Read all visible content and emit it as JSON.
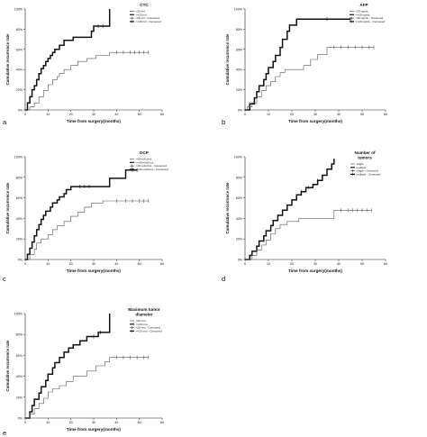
{
  "chart_data": [
    {
      "panel_letter": "a",
      "type": "line",
      "title": "CTC",
      "xlabel": "Time from surgery(months)",
      "ylabel": "Cumulative recurrence rate",
      "xlim": [
        0,
        60
      ],
      "ylim": [
        0,
        100
      ],
      "x_ticks": [
        "0",
        "10",
        "20",
        "30",
        "40",
        "50",
        "60"
      ],
      "y_ticks": [
        "0%",
        "20%",
        "40%",
        "60%",
        "80%",
        "100%"
      ],
      "legend_entries": [
        "<20 /ml",
        ">=20 /ml",
        "<20 /ml - Censored",
        ">=20 /ml - Censored"
      ],
      "legend_position": "top-right",
      "series": [
        {
          "name": ">=20 /ml",
          "style": "thick",
          "points": [
            [
              0,
              0
            ],
            [
              1,
              7
            ],
            [
              2,
              13
            ],
            [
              3,
              20
            ],
            [
              4,
              24
            ],
            [
              5,
              30
            ],
            [
              6,
              36
            ],
            [
              7,
              41
            ],
            [
              8,
              44
            ],
            [
              9,
              48
            ],
            [
              10,
              51
            ],
            [
              11,
              54
            ],
            [
              12,
              57
            ],
            [
              13,
              60
            ],
            [
              15,
              64
            ],
            [
              17,
              69
            ],
            [
              21,
              72
            ],
            [
              29,
              78
            ],
            [
              30,
              83
            ],
            [
              37,
              83
            ],
            [
              37,
              100
            ]
          ],
          "censored": [
            32,
            34
          ]
        },
        {
          "name": "<20 /ml",
          "style": "thin",
          "points": [
            [
              0,
              0
            ],
            [
              2,
              3
            ],
            [
              4,
              7
            ],
            [
              6,
              13
            ],
            [
              8,
              19
            ],
            [
              10,
              25
            ],
            [
              12,
              30
            ],
            [
              14,
              33
            ],
            [
              15,
              36
            ],
            [
              17,
              40
            ],
            [
              20,
              44
            ],
            [
              23,
              48
            ],
            [
              27,
              51
            ],
            [
              31,
              54
            ],
            [
              37,
              57
            ],
            [
              54,
              57
            ]
          ],
          "censored": [
            40,
            43,
            46,
            48,
            50,
            52,
            54
          ]
        }
      ]
    },
    {
      "panel_letter": "b",
      "type": "line",
      "title": "AFP",
      "xlabel": "Time from surgery(months)",
      "ylabel": "Cumulative recurrence rate",
      "xlim": [
        0,
        60
      ],
      "ylim": [
        0,
        100
      ],
      "x_ticks": [
        "0",
        "10",
        "20",
        "30",
        "40",
        "50",
        "60"
      ],
      "y_ticks": [
        "0%",
        "20%",
        "40%",
        "60%",
        "80%",
        "100%"
      ],
      "legend_entries": [
        "<20 ng/mL",
        ">=20 ng/mL",
        "<20 ng/mL - Censored",
        ">=20 ng/mL - Censored"
      ],
      "legend_position": "top-right",
      "series": [
        {
          "name": ">=20 ng/mL",
          "style": "thick",
          "points": [
            [
              0,
              0
            ],
            [
              2,
              6
            ],
            [
              4,
              12
            ],
            [
              5,
              18
            ],
            [
              6,
              24
            ],
            [
              8,
              30
            ],
            [
              9,
              36
            ],
            [
              10,
              42
            ],
            [
              12,
              48
            ],
            [
              13,
              54
            ],
            [
              15,
              62
            ],
            [
              16,
              70
            ],
            [
              18,
              78
            ],
            [
              19,
              84
            ],
            [
              22,
              90
            ],
            [
              45,
              90
            ]
          ],
          "censored": [
            35,
            45
          ]
        },
        {
          "name": "<20 ng/mL",
          "style": "thin",
          "points": [
            [
              0,
              0
            ],
            [
              1,
              3
            ],
            [
              3,
              7
            ],
            [
              5,
              13
            ],
            [
              7,
              19
            ],
            [
              9,
              24
            ],
            [
              11,
              28
            ],
            [
              13,
              33
            ],
            [
              15,
              37
            ],
            [
              17,
              40
            ],
            [
              25,
              44
            ],
            [
              28,
              50
            ],
            [
              31,
              55
            ],
            [
              35,
              62
            ],
            [
              55,
              62
            ]
          ],
          "censored": [
            38,
            41,
            44,
            47,
            50,
            53,
            55
          ]
        }
      ]
    },
    {
      "panel_letter": "c",
      "type": "line",
      "title": "DCP",
      "xlabel": "Time from surgery(months)",
      "ylabel": "Cumulative recurrence rate",
      "xlim": [
        0,
        60
      ],
      "ylim": [
        0,
        100
      ],
      "x_ticks": [
        "0",
        "10",
        "20",
        "30",
        "40",
        "50",
        "60"
      ],
      "y_ticks": [
        "0%",
        "20%",
        "40%",
        "60%",
        "80%",
        "100%"
      ],
      "legend_entries": [
        "<40 mAU/mL",
        ">=40 mAU/mL",
        "<40 mAU/mL - Censored",
        ">=40 mAU/mL - Censored"
      ],
      "legend_position": "top-right",
      "series": [
        {
          "name": ">=40 mAU/mL",
          "style": "thick",
          "points": [
            [
              0,
              0
            ],
            [
              1,
              5
            ],
            [
              2,
              11
            ],
            [
              3,
              17
            ],
            [
              4,
              23
            ],
            [
              5,
              29
            ],
            [
              6,
              34
            ],
            [
              7,
              39
            ],
            [
              8,
              43
            ],
            [
              9,
              47
            ],
            [
              11,
              51
            ],
            [
              12,
              55
            ],
            [
              14,
              58
            ],
            [
              15,
              61
            ],
            [
              17,
              64
            ],
            [
              18,
              68
            ],
            [
              20,
              71
            ],
            [
              36,
              71
            ],
            [
              37,
              79
            ],
            [
              44,
              87
            ],
            [
              49,
              87
            ]
          ],
          "censored": [
            24,
            26,
            28,
            47,
            49
          ]
        },
        {
          "name": "<40 mAU/mL",
          "style": "thin",
          "points": [
            [
              0,
              0
            ],
            [
              2,
              5
            ],
            [
              4,
              10
            ],
            [
              5,
              16
            ],
            [
              7,
              20
            ],
            [
              10,
              24
            ],
            [
              12,
              29
            ],
            [
              14,
              33
            ],
            [
              17,
              37
            ],
            [
              20,
              42
            ],
            [
              23,
              46
            ],
            [
              26,
              51
            ],
            [
              29,
              55
            ],
            [
              34,
              57
            ],
            [
              54,
              57
            ]
          ],
          "censored": [
            40,
            44,
            47,
            50,
            52,
            54
          ]
        }
      ]
    },
    {
      "panel_letter": "d",
      "type": "line",
      "title": "Number of tumors",
      "xlabel": "Time from surgery(months)",
      "ylabel": "Cumulative recurrence rate",
      "xlim": [
        0,
        60
      ],
      "ylim": [
        0,
        100
      ],
      "x_ticks": [
        "0",
        "10",
        "20",
        "30",
        "40",
        "50",
        "60"
      ],
      "y_ticks": [
        "0%",
        "20%",
        "40%",
        "60%",
        "80%",
        "100%"
      ],
      "legend_entries": [
        "single",
        "multiple",
        "single - Censored",
        "multiple - Censored"
      ],
      "legend_position": "top-right",
      "series": [
        {
          "name": "multiple",
          "style": "thick",
          "points": [
            [
              0,
              0
            ],
            [
              2,
              4
            ],
            [
              3,
              8
            ],
            [
              5,
              13
            ],
            [
              6,
              18
            ],
            [
              8,
              23
            ],
            [
              9,
              28
            ],
            [
              11,
              33
            ],
            [
              12,
              38
            ],
            [
              14,
              43
            ],
            [
              16,
              48
            ],
            [
              18,
              53
            ],
            [
              20,
              58
            ],
            [
              22,
              63
            ],
            [
              24,
              66
            ],
            [
              26,
              70
            ],
            [
              29,
              73
            ],
            [
              31,
              77
            ],
            [
              33,
              82
            ],
            [
              35,
              88
            ],
            [
              37,
              93
            ],
            [
              38,
              98
            ]
          ],
          "censored": [
            24,
            27,
            31
          ]
        },
        {
          "name": "single",
          "style": "thin",
          "points": [
            [
              0,
              0
            ],
            [
              3,
              4
            ],
            [
              5,
              9
            ],
            [
              7,
              14
            ],
            [
              9,
              19
            ],
            [
              11,
              25
            ],
            [
              13,
              30
            ],
            [
              15,
              34
            ],
            [
              18,
              37
            ],
            [
              23,
              40
            ],
            [
              38,
              40
            ],
            [
              38,
              48
            ],
            [
              54,
              48
            ]
          ],
          "censored": [
            41,
            44,
            46,
            48,
            50,
            52,
            54
          ]
        }
      ]
    },
    {
      "panel_letter": "e",
      "type": "line",
      "title": "Maximum tumor diameter",
      "xlabel": "Time from surgery(months)",
      "ylabel": "Cumulative recurrence rate",
      "xlim": [
        0,
        60
      ],
      "ylim": [
        0,
        100
      ],
      "x_ticks": [
        "0",
        "10",
        "20",
        "30",
        "40",
        "50",
        "60"
      ],
      "y_ticks": [
        "0%",
        "20%",
        "40%",
        "60%",
        "80%",
        "100%"
      ],
      "legend_entries": [
        "<20 mm",
        ">=20 mm",
        "<20 mm - Censored",
        ">=20 mm - Censored"
      ],
      "legend_position": "top-right",
      "series": [
        {
          "name": ">=20 mm",
          "style": "thick",
          "points": [
            [
              0,
              0
            ],
            [
              2,
              6
            ],
            [
              3,
              12
            ],
            [
              4,
              18
            ],
            [
              6,
              24
            ],
            [
              7,
              30
            ],
            [
              9,
              36
            ],
            [
              10,
              42
            ],
            [
              12,
              48
            ],
            [
              13,
              53
            ],
            [
              15,
              58
            ],
            [
              17,
              63
            ],
            [
              19,
              67
            ],
            [
              21,
              70
            ],
            [
              24,
              74
            ],
            [
              27,
              78
            ],
            [
              32,
              82
            ],
            [
              37,
              85
            ],
            [
              37,
              100
            ]
          ],
          "censored": [
            30,
            33
          ]
        },
        {
          "name": "<20 mm",
          "style": "thin",
          "points": [
            [
              0,
              0
            ],
            [
              2,
              4
            ],
            [
              4,
              9
            ],
            [
              6,
              14
            ],
            [
              8,
              19
            ],
            [
              10,
              25
            ],
            [
              12,
              28
            ],
            [
              15,
              31
            ],
            [
              18,
              35
            ],
            [
              21,
              40
            ],
            [
              27,
              45
            ],
            [
              31,
              50
            ],
            [
              35,
              54
            ],
            [
              37,
              58
            ],
            [
              54,
              58
            ]
          ],
          "censored": [
            40,
            43,
            46,
            49,
            52,
            54
          ]
        }
      ]
    }
  ]
}
